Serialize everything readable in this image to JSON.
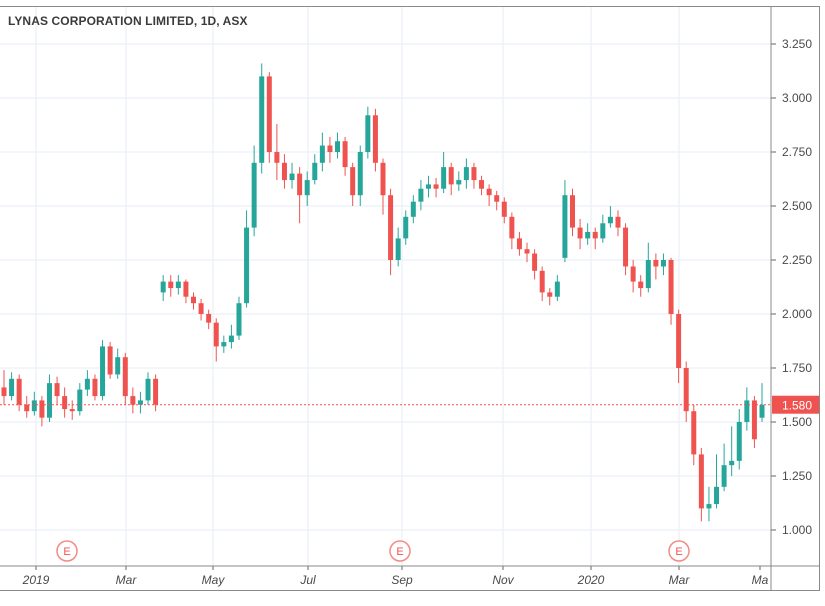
{
  "chart_data": {
    "type": "candlestick",
    "title": "LYNAS CORPORATION LIMITED, 1D, ASX",
    "ylim": [
      0.85,
      3.42
    ],
    "y_ticks": [
      "1.000",
      "1.250",
      "1.500",
      "1.750",
      "2.000",
      "2.250",
      "2.500",
      "2.750",
      "3.000",
      "3.250"
    ],
    "x_ticks": [
      "2019",
      "Mar",
      "May",
      "Jul",
      "Sep",
      "Nov",
      "2020",
      "Mar",
      "Ma"
    ],
    "last_price": 1.58,
    "last_price_label": "1.580",
    "event_marker_label": "E",
    "event_marker_count": 3,
    "grid": true,
    "colors": {
      "up": "#26a69a",
      "down": "#ef5350"
    },
    "candles": [
      [
        1.66,
        1.74,
        1.58,
        1.62
      ],
      [
        1.62,
        1.73,
        1.6,
        1.7
      ],
      [
        1.7,
        1.72,
        1.55,
        1.58
      ],
      [
        1.58,
        1.62,
        1.52,
        1.55
      ],
      [
        1.55,
        1.64,
        1.53,
        1.6
      ],
      [
        1.6,
        1.62,
        1.48,
        1.52
      ],
      [
        1.52,
        1.72,
        1.5,
        1.68
      ],
      [
        1.68,
        1.71,
        1.58,
        1.62
      ],
      [
        1.62,
        1.66,
        1.52,
        1.56
      ],
      [
        1.56,
        1.6,
        1.51,
        1.55
      ],
      [
        1.55,
        1.68,
        1.53,
        1.65
      ],
      [
        1.65,
        1.74,
        1.62,
        1.7
      ],
      [
        1.7,
        1.72,
        1.6,
        1.62
      ],
      [
        1.62,
        1.88,
        1.6,
        1.85
      ],
      [
        1.85,
        1.87,
        1.7,
        1.72
      ],
      [
        1.72,
        1.84,
        1.7,
        1.8
      ],
      [
        1.8,
        1.82,
        1.58,
        1.62
      ],
      [
        1.62,
        1.66,
        1.54,
        1.58
      ],
      [
        1.58,
        1.64,
        1.54,
        1.6
      ],
      [
        1.6,
        1.73,
        1.58,
        1.7
      ],
      [
        1.7,
        1.72,
        1.55,
        1.58
      ],
      [
        2.1,
        2.18,
        2.06,
        2.15
      ],
      [
        2.15,
        2.18,
        2.08,
        2.12
      ],
      [
        2.12,
        2.18,
        2.09,
        2.15
      ],
      [
        2.15,
        2.16,
        2.05,
        2.08
      ],
      [
        2.08,
        2.1,
        2.02,
        2.05
      ],
      [
        2.05,
        2.07,
        1.97,
        2.0
      ],
      [
        2.0,
        2.02,
        1.93,
        1.96
      ],
      [
        1.96,
        1.98,
        1.78,
        1.85
      ],
      [
        1.85,
        1.9,
        1.82,
        1.87
      ],
      [
        1.87,
        1.95,
        1.84,
        1.9
      ],
      [
        1.9,
        2.08,
        1.88,
        2.05
      ],
      [
        2.05,
        2.48,
        2.03,
        2.4
      ],
      [
        2.4,
        2.78,
        2.36,
        2.7
      ],
      [
        2.7,
        3.16,
        2.65,
        3.1
      ],
      [
        3.1,
        3.12,
        2.7,
        2.75
      ],
      [
        2.75,
        2.88,
        2.62,
        2.7
      ],
      [
        2.7,
        2.74,
        2.58,
        2.62
      ],
      [
        2.62,
        2.7,
        2.58,
        2.65
      ],
      [
        2.65,
        2.68,
        2.42,
        2.55
      ],
      [
        2.55,
        2.66,
        2.5,
        2.62
      ],
      [
        2.62,
        2.74,
        2.6,
        2.7
      ],
      [
        2.7,
        2.84,
        2.66,
        2.78
      ],
      [
        2.78,
        2.82,
        2.7,
        2.75
      ],
      [
        2.75,
        2.84,
        2.72,
        2.8
      ],
      [
        2.8,
        2.82,
        2.64,
        2.68
      ],
      [
        2.68,
        2.7,
        2.5,
        2.55
      ],
      [
        2.55,
        2.78,
        2.5,
        2.75
      ],
      [
        2.75,
        2.96,
        2.72,
        2.92
      ],
      [
        2.92,
        2.95,
        2.66,
        2.7
      ],
      [
        2.7,
        2.72,
        2.46,
        2.55
      ],
      [
        2.55,
        2.58,
        2.18,
        2.25
      ],
      [
        2.25,
        2.4,
        2.22,
        2.35
      ],
      [
        2.35,
        2.48,
        2.32,
        2.45
      ],
      [
        2.45,
        2.55,
        2.42,
        2.52
      ],
      [
        2.52,
        2.62,
        2.48,
        2.58
      ],
      [
        2.58,
        2.64,
        2.54,
        2.6
      ],
      [
        2.6,
        2.63,
        2.54,
        2.58
      ],
      [
        2.58,
        2.75,
        2.56,
        2.68
      ],
      [
        2.68,
        2.7,
        2.55,
        2.6
      ],
      [
        2.6,
        2.66,
        2.57,
        2.62
      ],
      [
        2.62,
        2.72,
        2.58,
        2.68
      ],
      [
        2.68,
        2.7,
        2.58,
        2.62
      ],
      [
        2.62,
        2.64,
        2.55,
        2.58
      ],
      [
        2.58,
        2.6,
        2.5,
        2.55
      ],
      [
        2.55,
        2.57,
        2.48,
        2.52
      ],
      [
        2.52,
        2.54,
        2.42,
        2.45
      ],
      [
        2.45,
        2.47,
        2.3,
        2.35
      ],
      [
        2.35,
        2.38,
        2.27,
        2.3
      ],
      [
        2.3,
        2.33,
        2.24,
        2.28
      ],
      [
        2.28,
        2.3,
        2.16,
        2.2
      ],
      [
        2.2,
        2.22,
        2.06,
        2.1
      ],
      [
        2.1,
        2.12,
        2.04,
        2.08
      ],
      [
        2.08,
        2.18,
        2.06,
        2.15
      ],
      [
        2.26,
        2.62,
        2.24,
        2.55
      ],
      [
        2.55,
        2.58,
        2.36,
        2.4
      ],
      [
        2.4,
        2.44,
        2.3,
        2.35
      ],
      [
        2.35,
        2.42,
        2.32,
        2.38
      ],
      [
        2.38,
        2.4,
        2.3,
        2.35
      ],
      [
        2.35,
        2.46,
        2.33,
        2.42
      ],
      [
        2.42,
        2.5,
        2.4,
        2.45
      ],
      [
        2.45,
        2.48,
        2.36,
        2.4
      ],
      [
        2.4,
        2.42,
        2.18,
        2.22
      ],
      [
        2.22,
        2.25,
        2.1,
        2.15
      ],
      [
        2.15,
        2.18,
        2.08,
        2.12
      ],
      [
        2.12,
        2.33,
        2.1,
        2.25
      ],
      [
        2.25,
        2.28,
        2.16,
        2.22
      ],
      [
        2.22,
        2.28,
        2.18,
        2.25
      ],
      [
        2.25,
        2.26,
        1.95,
        2.0
      ],
      [
        2.0,
        2.02,
        1.68,
        1.75
      ],
      [
        1.75,
        1.78,
        1.5,
        1.55
      ],
      [
        1.55,
        1.58,
        1.3,
        1.35
      ],
      [
        1.35,
        1.38,
        1.04,
        1.1
      ],
      [
        1.1,
        1.2,
        1.04,
        1.12
      ],
      [
        1.12,
        1.35,
        1.1,
        1.2
      ],
      [
        1.2,
        1.4,
        1.18,
        1.3
      ],
      [
        1.3,
        1.48,
        1.25,
        1.32
      ],
      [
        1.32,
        1.56,
        1.28,
        1.5
      ],
      [
        1.5,
        1.66,
        1.46,
        1.6
      ],
      [
        1.6,
        1.62,
        1.38,
        1.42
      ],
      [
        1.52,
        1.68,
        1.5,
        1.58
      ]
    ]
  }
}
